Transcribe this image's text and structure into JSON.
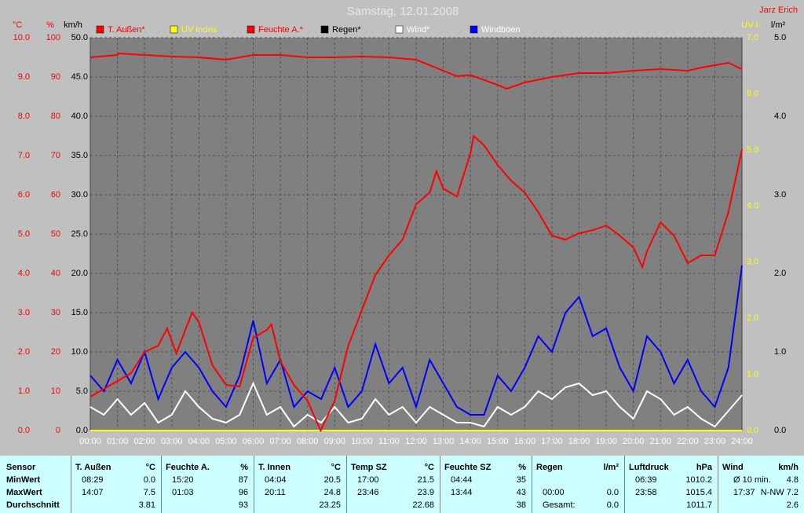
{
  "chart_data": {
    "type": "line",
    "title": "Samstag, 12.01.2008",
    "author": "Jarz Erich",
    "grid": true,
    "grid_axis": 2,
    "xlim": [
      0,
      24
    ],
    "xticks": [
      {
        "value": 0,
        "label": "00:00"
      },
      {
        "value": 1,
        "label": "01:00"
      },
      {
        "value": 2,
        "label": "02:00"
      },
      {
        "value": 3,
        "label": "03:00"
      },
      {
        "value": 4,
        "label": "04:00"
      },
      {
        "value": 5,
        "label": "05:00"
      },
      {
        "value": 6,
        "label": "06:00"
      },
      {
        "value": 7,
        "label": "07:00"
      },
      {
        "value": 8,
        "label": "08:00"
      },
      {
        "value": 9,
        "label": "09:00"
      },
      {
        "value": 10,
        "label": "10:00"
      },
      {
        "value": 11,
        "label": "11:00"
      },
      {
        "value": 12,
        "label": "12:00"
      },
      {
        "value": 13,
        "label": "13:00"
      },
      {
        "value": 14,
        "label": "14:00"
      },
      {
        "value": 15,
        "label": "15:00"
      },
      {
        "value": 16,
        "label": "16:00"
      },
      {
        "value": 17,
        "label": "17:00"
      },
      {
        "value": 18,
        "label": "18:00"
      },
      {
        "value": 19,
        "label": "19:00"
      },
      {
        "value": 20,
        "label": "20:00"
      },
      {
        "value": 21,
        "label": "21:00"
      },
      {
        "value": 22,
        "label": "22:00"
      },
      {
        "value": 23,
        "label": "23:00"
      },
      {
        "value": 24,
        "label": "24:00"
      }
    ],
    "axes": [
      {
        "label": "°C",
        "color": "#ff0000",
        "lim": [
          0,
          10
        ],
        "ticks": [
          {
            "value": 0,
            "label": "0.0"
          },
          {
            "value": 1,
            "label": "1.0"
          },
          {
            "value": 2,
            "label": "2.0"
          },
          {
            "value": 3,
            "label": "3.0"
          },
          {
            "value": 4,
            "label": "4.0"
          },
          {
            "value": 5,
            "label": "5.0"
          },
          {
            "value": 6,
            "label": "6.0"
          },
          {
            "value": 7,
            "label": "7.0"
          },
          {
            "value": 8,
            "label": "8.0"
          },
          {
            "value": 9,
            "label": "9.0"
          },
          {
            "value": 10,
            "label": "10.0"
          }
        ]
      },
      {
        "label": "%",
        "color": "#ff0000",
        "lim": [
          0,
          100
        ],
        "ticks": [
          0,
          10,
          20,
          30,
          40,
          50,
          60,
          70,
          80,
          90,
          100
        ]
      },
      {
        "label": "km/h",
        "color": "#000000",
        "lim": [
          0,
          50
        ],
        "ticks": [
          {
            "value": 0,
            "label": "0.0"
          },
          {
            "value": 5,
            "label": "5.0"
          },
          {
            "value": 10,
            "label": "10.0"
          },
          {
            "value": 15,
            "label": "15.0"
          },
          {
            "value": 20,
            "label": "20.0"
          },
          {
            "value": 25,
            "label": "25.0"
          },
          {
            "value": 30,
            "label": "30.0"
          },
          {
            "value": 35,
            "label": "35.0"
          },
          {
            "value": 40,
            "label": "40.0"
          },
          {
            "value": 45,
            "label": "45.0"
          },
          {
            "value": 50,
            "label": "50.0"
          }
        ]
      },
      {
        "label": "UV-I",
        "color": "#ffff00",
        "lim": [
          0,
          7
        ],
        "ticks": [
          {
            "value": 0,
            "label": "0.0"
          },
          {
            "value": 1,
            "label": "1.0"
          },
          {
            "value": 2,
            "label": "2.0"
          },
          {
            "value": 3,
            "label": "3.0"
          },
          {
            "value": 4,
            "label": "4.0"
          },
          {
            "value": 5,
            "label": "5.0"
          },
          {
            "value": 6,
            "label": "6.0"
          },
          {
            "value": 7,
            "label": "7.0"
          }
        ]
      },
      {
        "label": "l/m²",
        "color": "#000000",
        "lim": [
          0,
          5
        ],
        "ticks": [
          {
            "value": 0,
            "label": "0.0"
          },
          {
            "value": 1,
            "label": "1.0"
          },
          {
            "value": 2,
            "label": "2.0"
          },
          {
            "value": 3,
            "label": "3.0"
          },
          {
            "value": 4,
            "label": "4.0"
          },
          {
            "value": 5,
            "label": "5.0"
          }
        ]
      }
    ],
    "series": [
      {
        "name": "T. Außen*",
        "color": "#ff0000",
        "text_color": "#ff0000",
        "axis": 0,
        "x": [
          0,
          0.5,
          1,
          1.5,
          2,
          2.5,
          2.83,
          3.17,
          3.5,
          3.75,
          4,
          4.5,
          5,
          5.5,
          6,
          6.5,
          6.67,
          7,
          7.5,
          8,
          8.48,
          9,
          9.5,
          10,
          10.5,
          11,
          11.5,
          12,
          12.5,
          12.75,
          13,
          13.5,
          14,
          14.12,
          14.5,
          15,
          15.5,
          16,
          16.5,
          17,
          17.5,
          18,
          18.5,
          19,
          19.5,
          20,
          20.33,
          20.5,
          21,
          21.5,
          22,
          22.5,
          23,
          23.5,
          24
        ],
        "values": [
          0.86,
          1.06,
          1.26,
          1.46,
          2.0,
          2.16,
          2.6,
          1.96,
          2.56,
          3.0,
          2.76,
          1.66,
          1.16,
          1.12,
          2.36,
          2.56,
          2.7,
          1.76,
          1.16,
          0.76,
          0.0,
          0.76,
          2.16,
          3.06,
          3.96,
          4.46,
          4.86,
          5.76,
          6.06,
          6.6,
          6.16,
          5.96,
          7.06,
          7.5,
          7.26,
          6.76,
          6.36,
          6.06,
          5.56,
          4.96,
          4.86,
          5.02,
          5.1,
          5.22,
          4.96,
          4.66,
          4.16,
          4.56,
          5.3,
          4.96,
          4.26,
          4.46,
          4.46,
          5.56,
          7.16
        ]
      },
      {
        "name": "UV Index",
        "color": "#ffff00",
        "text_color": "#ffff00",
        "axis": 3,
        "x": [
          0,
          24
        ],
        "values": [
          0,
          0
        ]
      },
      {
        "name": "Feuchte A.*",
        "color": "#ff0000",
        "text_color": "#ff0000",
        "axis": 1,
        "x": [
          0,
          1,
          1.05,
          2,
          3,
          4,
          5,
          6,
          7,
          8,
          9,
          10,
          11,
          12,
          13,
          13.5,
          14,
          15,
          15.33,
          16,
          17,
          18,
          19,
          20,
          21,
          22,
          22.5,
          23,
          23.5,
          24
        ],
        "values": [
          95,
          95.6,
          96,
          95.6,
          95.2,
          95,
          94.4,
          95.6,
          95.6,
          95,
          95,
          95.2,
          95,
          94.4,
          91.6,
          90.2,
          90.5,
          88,
          87,
          88.6,
          90,
          91,
          91,
          91.6,
          92,
          91.6,
          92.4,
          93,
          93.6,
          92
        ]
      },
      {
        "name": "Regen*",
        "color": "#000000",
        "text_color": "#000000",
        "axis": 4,
        "x": [
          0,
          24
        ],
        "values": [
          0,
          0
        ]
      },
      {
        "name": "Wind*",
        "color": "#ffffff",
        "text_color": "#ffffff",
        "axis": 2,
        "x": [
          0,
          0.5,
          1,
          1.5,
          2,
          2.5,
          3,
          3.5,
          4,
          4.5,
          5,
          5.5,
          6,
          6.5,
          7,
          7.5,
          8,
          8.5,
          9,
          9.5,
          10,
          10.5,
          11,
          11.5,
          12,
          12.5,
          13,
          13.5,
          14,
          14.5,
          15,
          15.5,
          16,
          16.5,
          17,
          17.5,
          18,
          18.5,
          19,
          19.5,
          20,
          20.5,
          21,
          21.5,
          22,
          22.5,
          23,
          23.5,
          24
        ],
        "values": [
          3,
          2,
          4,
          2,
          3.5,
          1,
          2,
          5,
          3,
          1.5,
          1,
          2,
          6,
          2,
          3,
          0.5,
          2,
          1,
          3,
          1,
          1.5,
          4,
          2,
          3,
          1,
          3,
          2,
          1,
          1,
          0.5,
          3,
          2,
          3,
          5,
          4,
          5.5,
          6,
          4.5,
          5,
          3,
          1.5,
          5,
          4,
          2,
          3,
          1.5,
          0.5,
          2.5,
          4.5
        ]
      },
      {
        "name": "Windböen",
        "color": "#0000ff",
        "text_color": "#ffffff",
        "axis": 2,
        "x": [
          0,
          0.5,
          1,
          1.5,
          2,
          2.5,
          3,
          3.5,
          4,
          4.5,
          5,
          5.5,
          6,
          6.5,
          7,
          7.5,
          8,
          8.5,
          9,
          9.5,
          10,
          10.5,
          11,
          11.5,
          12,
          12.5,
          13,
          13.5,
          14,
          14.5,
          15,
          15.5,
          16,
          16.5,
          17,
          17.5,
          18,
          18.5,
          19,
          19.5,
          20,
          20.5,
          21,
          21.5,
          22,
          22.5,
          23,
          23.5,
          24
        ],
        "values": [
          7,
          5,
          9,
          6,
          10,
          4,
          8,
          10,
          8,
          5,
          3,
          7,
          14,
          6,
          9,
          3,
          5,
          4,
          8,
          3,
          5,
          11,
          6,
          8,
          3,
          9,
          6,
          3,
          2,
          2,
          7,
          5,
          8,
          12,
          10,
          15,
          17,
          12,
          13,
          8,
          5,
          12,
          10,
          6,
          9,
          5,
          3,
          8,
          21
        ]
      }
    ]
  },
  "table": {
    "sensor": {
      "header": "Sensor",
      "rows": [
        "MinWert",
        "MaxWert",
        "Durchschnitt"
      ]
    },
    "groups": [
      {
        "name": "T. Außen",
        "unit": "°C",
        "rows": [
          {
            "time": "08:29",
            "value": "0.0"
          },
          {
            "time": "14:07",
            "value": "7.5"
          },
          {
            "value": "3.81"
          }
        ]
      },
      {
        "name": "Feuchte A.",
        "unit": "%",
        "rows": [
          {
            "time": "15:20",
            "value": "87"
          },
          {
            "time": "01:03",
            "value": "96"
          },
          {
            "value": "93"
          }
        ]
      },
      {
        "name": "T. Innen",
        "unit": "°C",
        "rows": [
          {
            "time": "04:04",
            "value": "20.5"
          },
          {
            "time": "20:11",
            "value": "24.8"
          },
          {
            "value": "23.25"
          }
        ]
      },
      {
        "name": "Temp SZ",
        "unit": "°C",
        "rows": [
          {
            "time": "17:00",
            "value": "21.5"
          },
          {
            "time": "23:46",
            "value": "23.9"
          },
          {
            "value": "22.68"
          }
        ]
      },
      {
        "name": "Feuchte SZ",
        "unit": "%",
        "rows": [
          {
            "time": "04:44",
            "value": "35"
          },
          {
            "time": "13:44",
            "value": "43"
          },
          {
            "value": "38"
          }
        ]
      },
      {
        "name": "Regen",
        "unit": "l/m²",
        "rows": [
          {},
          {
            "time": "00:00",
            "value": "0.0"
          },
          {
            "time": "Gesamt:",
            "value": "0.0"
          }
        ]
      },
      {
        "name": "Luftdruck",
        "unit": "hPa",
        "rows": [
          {
            "time": "06:39",
            "value": "1010.2"
          },
          {
            "time": "23:58",
            "value": "1015.4"
          },
          {
            "value": "1011.7"
          }
        ]
      },
      {
        "name": "Wind",
        "unit": "km/h",
        "rows": [
          {
            "time": "Ø 10 min.",
            "value": "4.8"
          },
          {
            "time": "17:37",
            "value": "N-NW 7.2"
          },
          {
            "value": "2.6"
          }
        ]
      }
    ]
  }
}
